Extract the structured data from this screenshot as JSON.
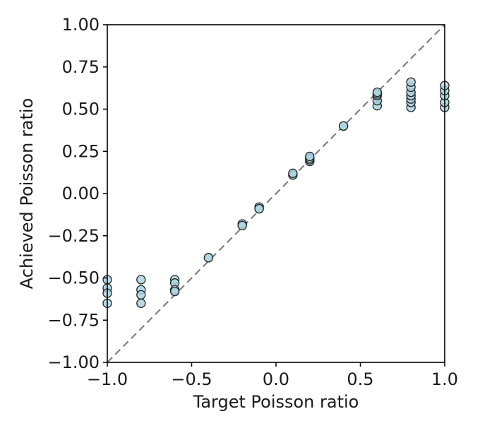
{
  "chart_data": {
    "type": "scatter",
    "title": "",
    "xlabel": "Target Poisson ratio",
    "ylabel": "Achieved Poisson ratio",
    "xlim": [
      -1.0,
      1.0
    ],
    "ylim": [
      -1.0,
      1.0
    ],
    "xticks": [
      "−1.0",
      "−0.5",
      "0.0",
      "0.5",
      "1.0"
    ],
    "xtick_values": [
      -1.0,
      -0.5,
      0.0,
      0.5,
      1.0
    ],
    "yticks": [
      "−1.00",
      "−0.75",
      "−0.50",
      "−0.25",
      "0.00",
      "0.25",
      "0.50",
      "0.75",
      "1.00"
    ],
    "ytick_values": [
      -1.0,
      -0.75,
      -0.5,
      -0.25,
      0.0,
      0.25,
      0.5,
      0.75,
      1.0
    ],
    "reference_line": {
      "from": [
        -1.0,
        -1.0
      ],
      "to": [
        1.0,
        1.0
      ],
      "style": "dashed",
      "color": "#808080"
    },
    "marker_color": "#a9d5e2",
    "marker_edge_color": "#222222",
    "grid": false,
    "legend": "none",
    "points": [
      {
        "x": -1.0,
        "y": -0.51
      },
      {
        "x": -1.0,
        "y": -0.56
      },
      {
        "x": -1.0,
        "y": -0.59
      },
      {
        "x": -1.0,
        "y": -0.65
      },
      {
        "x": -0.8,
        "y": -0.51
      },
      {
        "x": -0.8,
        "y": -0.57
      },
      {
        "x": -0.8,
        "y": -0.6
      },
      {
        "x": -0.8,
        "y": -0.65
      },
      {
        "x": -0.6,
        "y": -0.51
      },
      {
        "x": -0.6,
        "y": -0.53
      },
      {
        "x": -0.6,
        "y": -0.57
      },
      {
        "x": -0.6,
        "y": -0.58
      },
      {
        "x": -0.4,
        "y": -0.38
      },
      {
        "x": -0.4,
        "y": -0.38
      },
      {
        "x": -0.2,
        "y": -0.18
      },
      {
        "x": -0.2,
        "y": -0.19
      },
      {
        "x": -0.1,
        "y": -0.08
      },
      {
        "x": -0.1,
        "y": -0.09
      },
      {
        "x": -0.1,
        "y": -0.09
      },
      {
        "x": 0.1,
        "y": 0.11
      },
      {
        "x": 0.1,
        "y": 0.11
      },
      {
        "x": 0.1,
        "y": 0.12
      },
      {
        "x": 0.2,
        "y": 0.19
      },
      {
        "x": 0.2,
        "y": 0.2
      },
      {
        "x": 0.2,
        "y": 0.21
      },
      {
        "x": 0.2,
        "y": 0.22
      },
      {
        "x": 0.4,
        "y": 0.4
      },
      {
        "x": 0.4,
        "y": 0.4
      },
      {
        "x": 0.6,
        "y": 0.52
      },
      {
        "x": 0.6,
        "y": 0.55
      },
      {
        "x": 0.6,
        "y": 0.58
      },
      {
        "x": 0.6,
        "y": 0.59
      },
      {
        "x": 0.6,
        "y": 0.6
      },
      {
        "x": 0.8,
        "y": 0.51
      },
      {
        "x": 0.8,
        "y": 0.54
      },
      {
        "x": 0.8,
        "y": 0.56
      },
      {
        "x": 0.8,
        "y": 0.58
      },
      {
        "x": 0.8,
        "y": 0.6
      },
      {
        "x": 0.8,
        "y": 0.63
      },
      {
        "x": 0.8,
        "y": 0.66
      },
      {
        "x": 1.0,
        "y": 0.51
      },
      {
        "x": 1.0,
        "y": 0.54
      },
      {
        "x": 1.0,
        "y": 0.58
      },
      {
        "x": 1.0,
        "y": 0.61
      },
      {
        "x": 1.0,
        "y": 0.64
      }
    ]
  }
}
